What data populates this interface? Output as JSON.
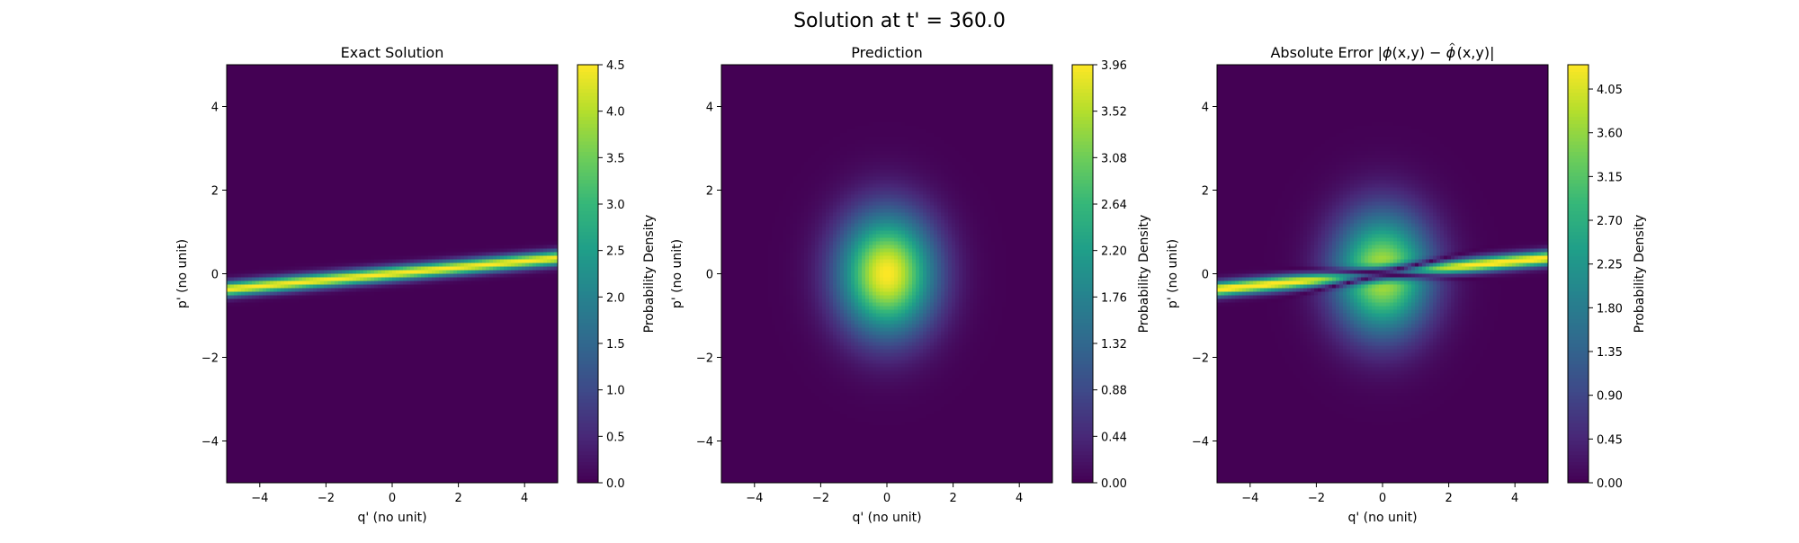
{
  "figure": {
    "suptitle": "Solution at t' = 360.0"
  },
  "chart_data": [
    {
      "type": "heatmap",
      "title": "Exact Solution",
      "xlabel": "q' (no unit)",
      "ylabel": "p' (no unit)",
      "xlim": [
        -5,
        5
      ],
      "ylim": [
        -5,
        5
      ],
      "xticks": [
        "−4",
        "−2",
        "0",
        "2",
        "4"
      ],
      "xtick_values": [
        -4,
        -2,
        0,
        2,
        4
      ],
      "yticks": [
        "−4",
        "−2",
        "0",
        "2",
        "4"
      ],
      "ytick_values": [
        -4,
        -2,
        0,
        2,
        4
      ],
      "colormap": "viridis",
      "colorbar": {
        "label": "Probability Density",
        "range": [
          0,
          4.5
        ],
        "ticks": [
          "0.0",
          "0.5",
          "1.0",
          "1.5",
          "2.0",
          "2.5",
          "3.0",
          "3.5",
          "4.0",
          "4.5"
        ],
        "tick_values": [
          0,
          0.5,
          1.0,
          1.5,
          2.0,
          2.5,
          3.0,
          3.5,
          4.0,
          4.5
        ]
      },
      "field": {
        "kind": "band",
        "peak": 4.5,
        "slope": 0.075,
        "width": 0.12
      },
      "grid": false
    },
    {
      "type": "heatmap",
      "title": "Prediction",
      "xlabel": "q' (no unit)",
      "ylabel": "p' (no unit)",
      "xlim": [
        -5,
        5
      ],
      "ylim": [
        -5,
        5
      ],
      "xticks": [
        "−4",
        "−2",
        "0",
        "2",
        "4"
      ],
      "xtick_values": [
        -4,
        -2,
        0,
        2,
        4
      ],
      "yticks": [
        "−4",
        "−2",
        "0",
        "2",
        "4"
      ],
      "ytick_values": [
        -4,
        -2,
        0,
        2,
        4
      ],
      "colormap": "viridis",
      "colorbar": {
        "label": "Probability Density",
        "range": [
          0,
          3.96
        ],
        "ticks": [
          "0.00",
          "0.44",
          "0.88",
          "1.32",
          "1.76",
          "2.20",
          "2.64",
          "3.08",
          "3.52",
          "3.96"
        ],
        "tick_values": [
          0,
          0.44,
          0.88,
          1.32,
          1.76,
          2.2,
          2.64,
          3.08,
          3.52,
          3.96
        ]
      },
      "field": {
        "kind": "gaussian",
        "peak": 3.96,
        "sigma_q": 1.0,
        "sigma_p": 1.0
      },
      "grid": false
    },
    {
      "type": "heatmap",
      "title": "Absolute Error |ϕ(x,y) − ϕ̂(x,y)|",
      "title_main": "Absolute Error |",
      "title_phi": "ϕ",
      "title_mid1": "(x,y) − ",
      "title_phihat": "ϕ",
      "title_hat": "^",
      "title_mid2": "(x,y)|",
      "xlabel": "q' (no unit)",
      "ylabel": "p' (no unit)",
      "xlim": [
        -5,
        5
      ],
      "ylim": [
        -5,
        5
      ],
      "xticks": [
        "−4",
        "−2",
        "0",
        "2",
        "4"
      ],
      "xtick_values": [
        -4,
        -2,
        0,
        2,
        4
      ],
      "yticks": [
        "−4",
        "−2",
        "0",
        "2",
        "4"
      ],
      "ytick_values": [
        -4,
        -2,
        0,
        2,
        4
      ],
      "colormap": "viridis",
      "colorbar": {
        "label": "Probability Density",
        "range": [
          0,
          4.3
        ],
        "ticks": [
          "0.00",
          "0.45",
          "0.90",
          "1.35",
          "1.80",
          "2.25",
          "2.70",
          "3.15",
          "3.60",
          "4.05"
        ],
        "tick_values": [
          0,
          0.45,
          0.9,
          1.35,
          1.8,
          2.25,
          2.7,
          3.15,
          3.6,
          4.05
        ]
      },
      "field": {
        "kind": "abs_difference",
        "of": [
          "Exact Solution",
          "Prediction"
        ]
      },
      "grid": false
    }
  ]
}
